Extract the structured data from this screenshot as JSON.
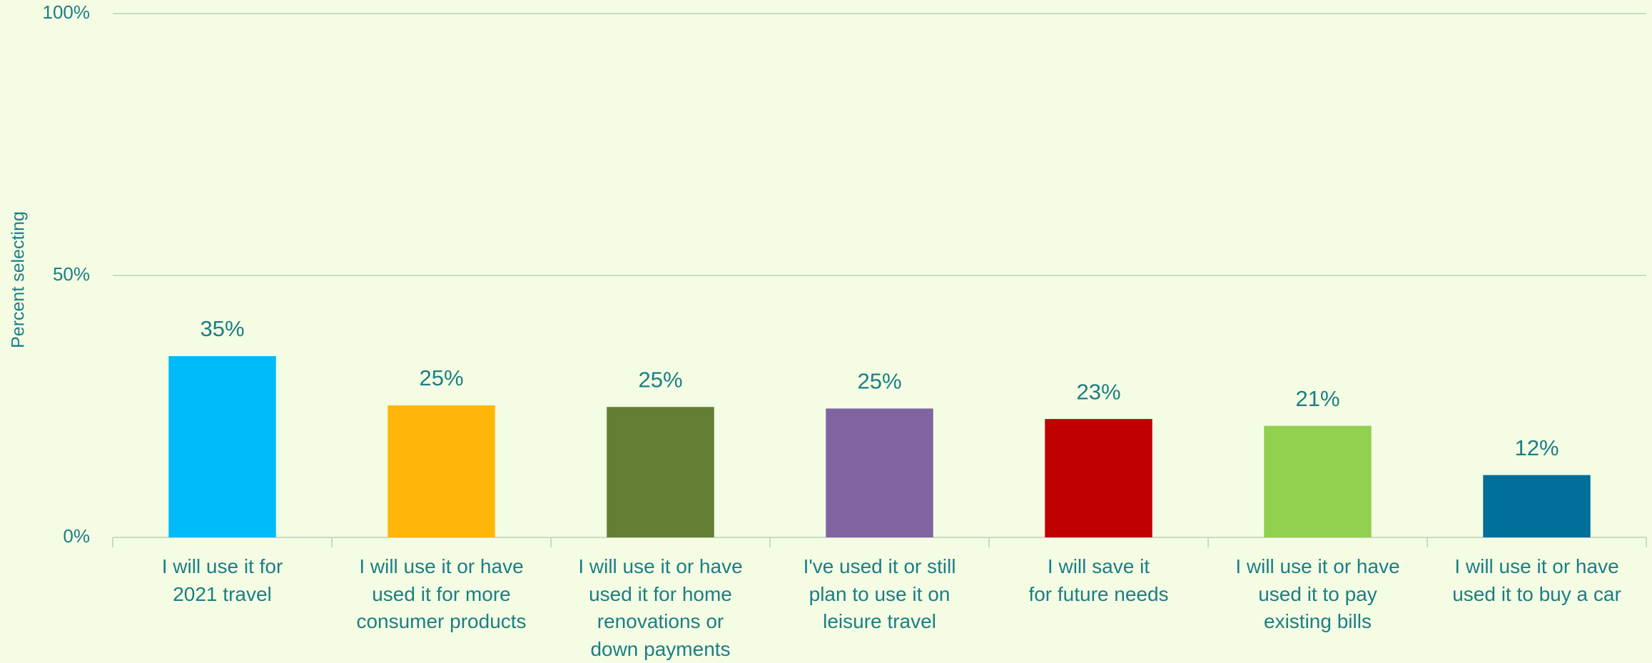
{
  "chart_data": {
    "type": "bar",
    "y_label": "Percent selecting",
    "categories": [
      "I will use it for\n2021 travel",
      "I will use it or have\nused it for more\nconsumer products",
      "I will use it or have\nused it for home\nrenovations or\ndown payments",
      "I've used it or still\nplan to use it on\nleisure travel",
      "I will save it\nfor future needs",
      "I will use it or have\nused it to pay\nexisting bills",
      "I will use it or have\nused it to buy a car"
    ],
    "values": [
      34.6,
      25.2,
      24.9,
      24.6,
      22.6,
      21.3,
      11.9
    ],
    "value_labels": [
      "35%",
      "25%",
      "25%",
      "25%",
      "23%",
      "21%",
      "12%"
    ],
    "colors": [
      "#00bbf9",
      "#ffb50a",
      "#647e33",
      "#8064a2",
      "#c00000",
      "#92d050",
      "#006f9a"
    ],
    "ylim": [
      0,
      100
    ],
    "yticks": [
      {
        "value": 0,
        "label": "0%"
      },
      {
        "value": 50,
        "label": "50%"
      },
      {
        "value": 100,
        "label": "100%"
      }
    ],
    "grid": true
  }
}
